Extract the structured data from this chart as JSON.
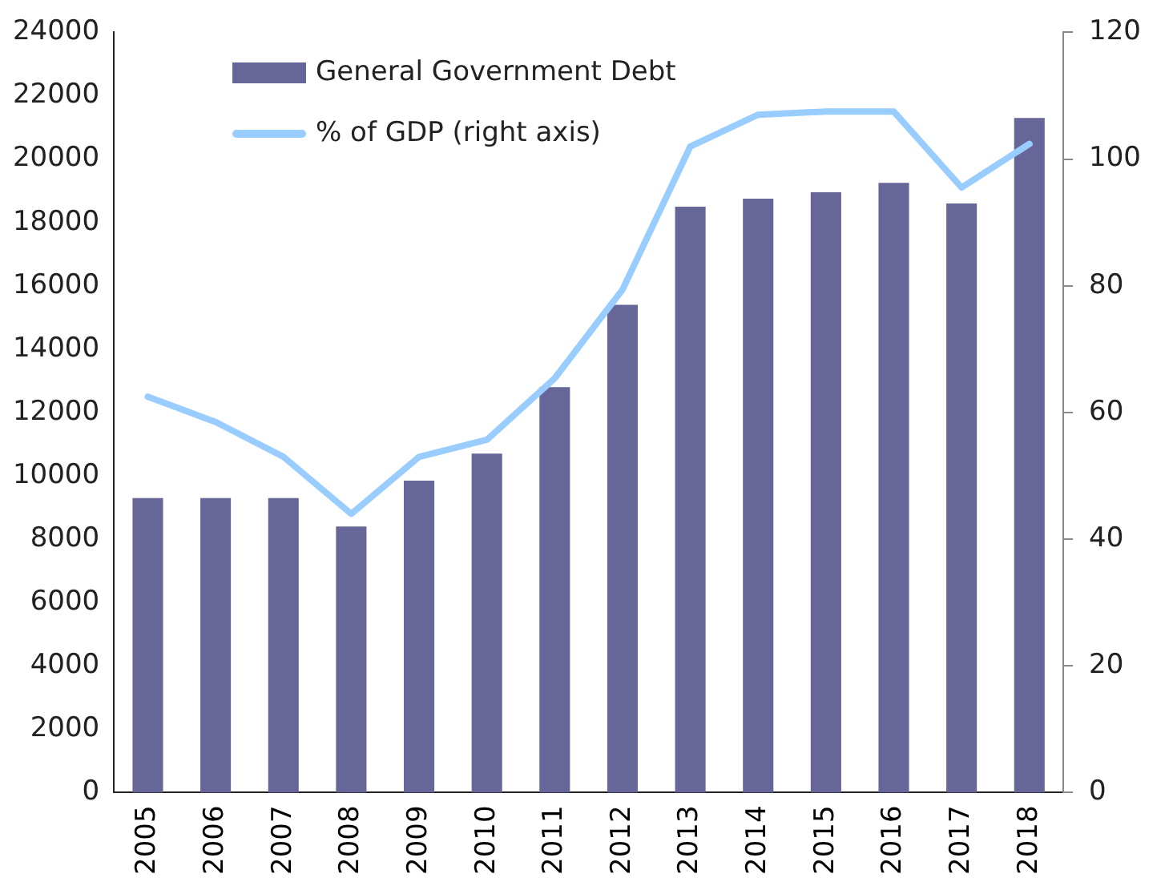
{
  "chart_data": {
    "type": "bar",
    "categories": [
      "2005",
      "2006",
      "2007",
      "2008",
      "2009",
      "2010",
      "2011",
      "2012",
      "2013",
      "2014",
      "2015",
      "2016",
      "2017",
      "2018"
    ],
    "series": [
      {
        "name": "General Government Debt",
        "color": "#666699",
        "values": [
          9300,
          9300,
          9300,
          8400,
          9850,
          10700,
          12800,
          15400,
          18500,
          18750,
          18950,
          19250,
          18600,
          21300
        ]
      },
      {
        "name": "% of GDP (right axis)",
        "type": "line",
        "axis": "y2",
        "color": "#99ccff",
        "values": [
          62.5,
          58.5,
          53,
          44,
          53,
          55.7,
          65.4,
          79.4,
          102,
          107,
          107.5,
          107.5,
          95.5,
          102.4
        ]
      }
    ],
    "ylim": [
      0,
      24000
    ],
    "yticks": [
      0,
      2000,
      4000,
      6000,
      8000,
      10000,
      12000,
      14000,
      16000,
      18000,
      20000,
      22000,
      24000
    ],
    "y2lim": [
      0,
      120
    ],
    "y2ticks": [
      0,
      20,
      40,
      60,
      80,
      100,
      120
    ],
    "grid": false,
    "legend": "top left",
    "marker": "none"
  }
}
